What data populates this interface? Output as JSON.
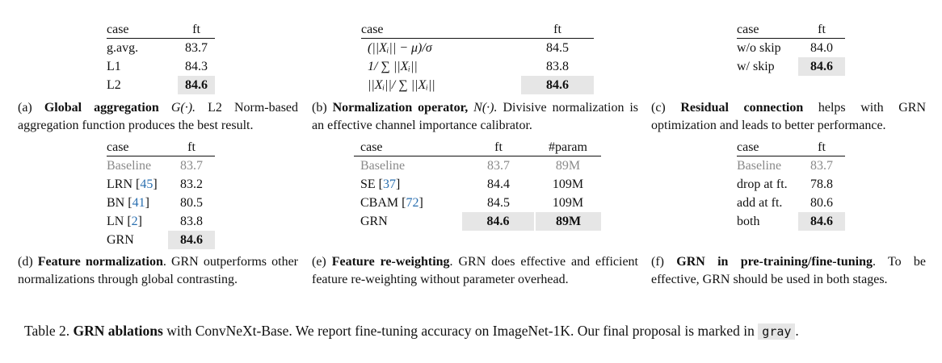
{
  "a": {
    "headers": [
      "case",
      "ft"
    ],
    "rows": [
      [
        "g.avg.",
        "83.7"
      ],
      [
        "L1",
        "84.3"
      ],
      [
        "L2",
        "84.6"
      ]
    ],
    "caption_label": "(a)",
    "caption_bold": "Global aggregation",
    "caption_math": "G(·).",
    "caption_rest": "L2 Norm-based aggregation function produces the best result."
  },
  "b": {
    "headers": [
      "case",
      "ft"
    ],
    "rows": [
      [
        "(||Xᵢ|| − μ)/σ",
        "84.5"
      ],
      [
        "1/ ∑ ||Xᵢ||",
        "83.8"
      ],
      [
        "||Xᵢ||/ ∑ ||Xᵢ||",
        "84.6"
      ]
    ],
    "caption_label": "(b)",
    "caption_bold": "Normalization operator,",
    "caption_math": "N(·).",
    "caption_rest": "Divisive normalization is an effective channel importance calibrator."
  },
  "c": {
    "headers": [
      "case",
      "ft"
    ],
    "rows": [
      [
        "w/o skip",
        "84.0"
      ],
      [
        "w/ skip",
        "84.6"
      ]
    ],
    "caption_label": "(c)",
    "caption_bold": "Residual connection",
    "caption_rest": "helps with GRN optimization and leads to better performance."
  },
  "d": {
    "headers": [
      "case",
      "ft"
    ],
    "rows": [
      {
        "name": "Baseline",
        "ref": "",
        "ft": "83.7"
      },
      {
        "name": "LRN [",
        "ref": "45",
        "ft": "83.2"
      },
      {
        "name": "BN [",
        "ref": "41",
        "ft": "80.5"
      },
      {
        "name": "LN [",
        "ref": "2",
        "ft": "83.8"
      },
      {
        "name": "GRN",
        "ref": "",
        "ft": "84.6"
      }
    ],
    "caption_label": "(d)",
    "caption_bold": "Feature normalization",
    "caption_rest": ". GRN outperforms other normalizations through global contrasting."
  },
  "e": {
    "headers": [
      "case",
      "ft",
      "#param"
    ],
    "rows": [
      {
        "name": "Baseline",
        "ref": "",
        "ft": "83.7",
        "param": "89M"
      },
      {
        "name": "SE [",
        "ref": "37",
        "ft": "84.4",
        "param": "109M"
      },
      {
        "name": "CBAM [",
        "ref": "72",
        "ft": "84.5",
        "param": "109M"
      },
      {
        "name": "GRN",
        "ref": "",
        "ft": "84.6",
        "param": "89M"
      }
    ],
    "caption_label": "(e)",
    "caption_bold": "Feature re-weighting",
    "caption_rest": ". GRN does effective and efficient feature re-weighting without parameter overhead."
  },
  "f": {
    "headers": [
      "case",
      "ft"
    ],
    "rows": [
      [
        "Baseline",
        "83.7"
      ],
      [
        "drop at ft.",
        "78.8"
      ],
      [
        "add at ft.",
        "80.6"
      ],
      [
        "both",
        "84.6"
      ]
    ],
    "caption_label": "(f)",
    "caption_bold": "GRN in pre-training/fine-tuning",
    "caption_rest": ". To be effective, GRN should be used in both stages."
  },
  "main_caption": {
    "prefix": "Table 2.",
    "bold": "GRN ablations",
    "text": "with ConvNeXt-Base. We report fine-tuning accuracy on ImageNet-1K. Our final proposal is marked in",
    "code": "gray",
    "suffix": "."
  },
  "colors": {
    "highlight": "#e6e6e6",
    "baseline_gray": "#8a8a8a",
    "ref_blue": "#2a6fb0"
  }
}
